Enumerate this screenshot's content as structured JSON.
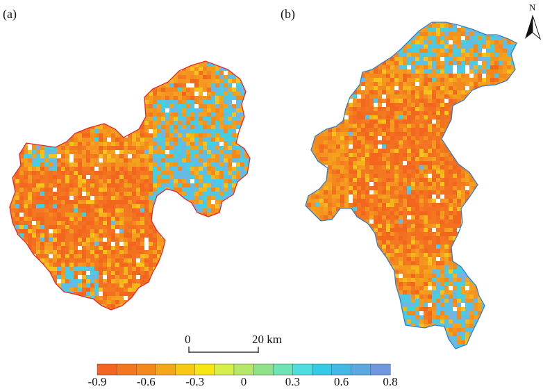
{
  "panels": [
    {
      "label": "(a)"
    },
    {
      "label": "(b)"
    }
  ],
  "north_arrow": {
    "label": "N"
  },
  "scale_bar": {
    "start_label": "0",
    "end_label": "20",
    "unit": "km"
  },
  "legend": {
    "ticks": [
      "-0.9",
      "-0.6",
      "-0.3",
      "0",
      "0.3",
      "0.6",
      "0.8"
    ],
    "colors": [
      "#f26522",
      "#f2771f",
      "#f3891c",
      "#f5a71a",
      "#f8c914",
      "#f5e614",
      "#d7ef48",
      "#b6e66a",
      "#8fe28a",
      "#6fe3b4",
      "#4fdde0",
      "#35cbe6",
      "#43b7e6",
      "#5aa7e2",
      "#7098e0"
    ]
  },
  "colors": {
    "boundary_a": "#e8262b",
    "boundary_b": "#2f7fd0",
    "land_orange": "#f39a1f",
    "land_deep": "#f26a1e",
    "land_cyan": "#4ec8e4"
  }
}
